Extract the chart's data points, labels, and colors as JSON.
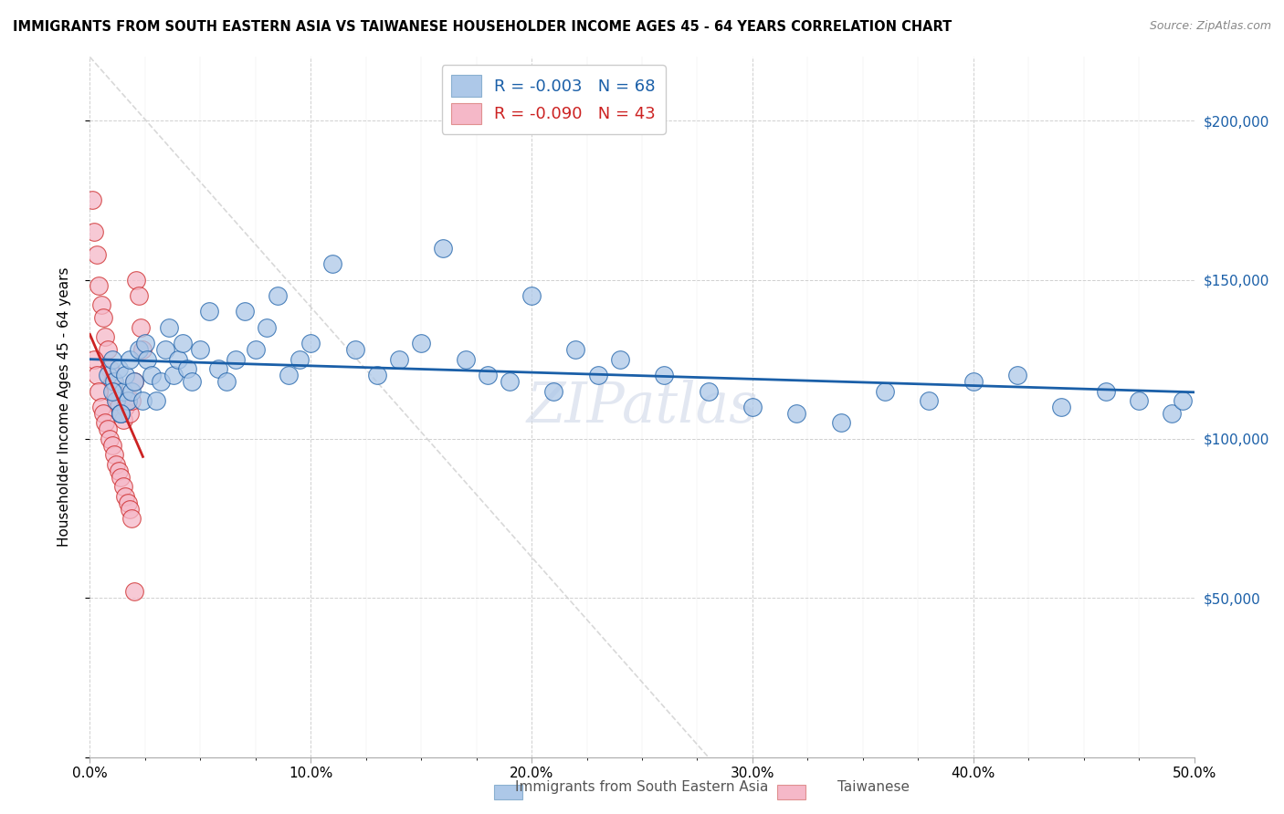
{
  "title": "IMMIGRANTS FROM SOUTH EASTERN ASIA VS TAIWANESE HOUSEHOLDER INCOME AGES 45 - 64 YEARS CORRELATION CHART",
  "source": "Source: ZipAtlas.com",
  "ylabel": "Householder Income Ages 45 - 64 years",
  "legend_label1": "Immigrants from South Eastern Asia",
  "legend_label2": "Taiwanese",
  "R1": -0.003,
  "N1": 68,
  "R2": -0.09,
  "N2": 43,
  "color_blue": "#adc8e8",
  "color_pink": "#f5b8c8",
  "trendline_blue": "#1a5fa8",
  "trendline_pink": "#cc2222",
  "xmin": 0.0,
  "xmax": 0.5,
  "ymin": 0,
  "ymax": 220000,
  "xticks": [
    0.0,
    0.1,
    0.2,
    0.3,
    0.4,
    0.5
  ],
  "xtick_labels": [
    "0.0%",
    "10.0%",
    "20.0%",
    "30.0%",
    "40.0%",
    "50.0%"
  ],
  "ytick_positions": [
    0,
    50000,
    100000,
    150000,
    200000
  ],
  "ytick_labels_right": [
    "",
    "$50,000",
    "$100,000",
    "$150,000",
    "$200,000"
  ],
  "blue_x": [
    0.008,
    0.01,
    0.011,
    0.012,
    0.013,
    0.014,
    0.015,
    0.016,
    0.017,
    0.018,
    0.019,
    0.02,
    0.022,
    0.024,
    0.025,
    0.026,
    0.028,
    0.03,
    0.032,
    0.034,
    0.036,
    0.038,
    0.04,
    0.042,
    0.044,
    0.046,
    0.05,
    0.054,
    0.058,
    0.062,
    0.066,
    0.07,
    0.075,
    0.08,
    0.085,
    0.09,
    0.095,
    0.1,
    0.11,
    0.12,
    0.13,
    0.14,
    0.15,
    0.16,
    0.17,
    0.18,
    0.19,
    0.2,
    0.21,
    0.22,
    0.23,
    0.24,
    0.26,
    0.28,
    0.3,
    0.32,
    0.34,
    0.36,
    0.38,
    0.4,
    0.42,
    0.44,
    0.46,
    0.475,
    0.49,
    0.495,
    0.01,
    0.014
  ],
  "blue_y": [
    120000,
    125000,
    118000,
    112000,
    122000,
    108000,
    115000,
    120000,
    112000,
    125000,
    115000,
    118000,
    128000,
    112000,
    130000,
    125000,
    120000,
    112000,
    118000,
    128000,
    135000,
    120000,
    125000,
    130000,
    122000,
    118000,
    128000,
    140000,
    122000,
    118000,
    125000,
    140000,
    128000,
    135000,
    145000,
    120000,
    125000,
    130000,
    155000,
    128000,
    120000,
    125000,
    130000,
    160000,
    125000,
    120000,
    118000,
    145000,
    115000,
    128000,
    120000,
    125000,
    120000,
    115000,
    110000,
    108000,
    105000,
    115000,
    112000,
    118000,
    120000,
    110000,
    115000,
    112000,
    108000,
    112000,
    115000,
    108000
  ],
  "pink_x": [
    0.001,
    0.002,
    0.003,
    0.004,
    0.005,
    0.006,
    0.007,
    0.008,
    0.009,
    0.01,
    0.011,
    0.012,
    0.013,
    0.014,
    0.015,
    0.016,
    0.017,
    0.018,
    0.019,
    0.02,
    0.021,
    0.022,
    0.023,
    0.024,
    0.002,
    0.003,
    0.004,
    0.005,
    0.006,
    0.007,
    0.008,
    0.009,
    0.01,
    0.011,
    0.012,
    0.013,
    0.014,
    0.015,
    0.016,
    0.017,
    0.018,
    0.019,
    0.02
  ],
  "pink_y": [
    175000,
    165000,
    158000,
    148000,
    142000,
    138000,
    132000,
    128000,
    122000,
    118000,
    115000,
    112000,
    110000,
    108000,
    106000,
    110000,
    112000,
    108000,
    112000,
    118000,
    150000,
    145000,
    135000,
    128000,
    125000,
    120000,
    115000,
    110000,
    108000,
    105000,
    103000,
    100000,
    98000,
    95000,
    92000,
    90000,
    88000,
    85000,
    82000,
    80000,
    78000,
    75000,
    52000
  ]
}
